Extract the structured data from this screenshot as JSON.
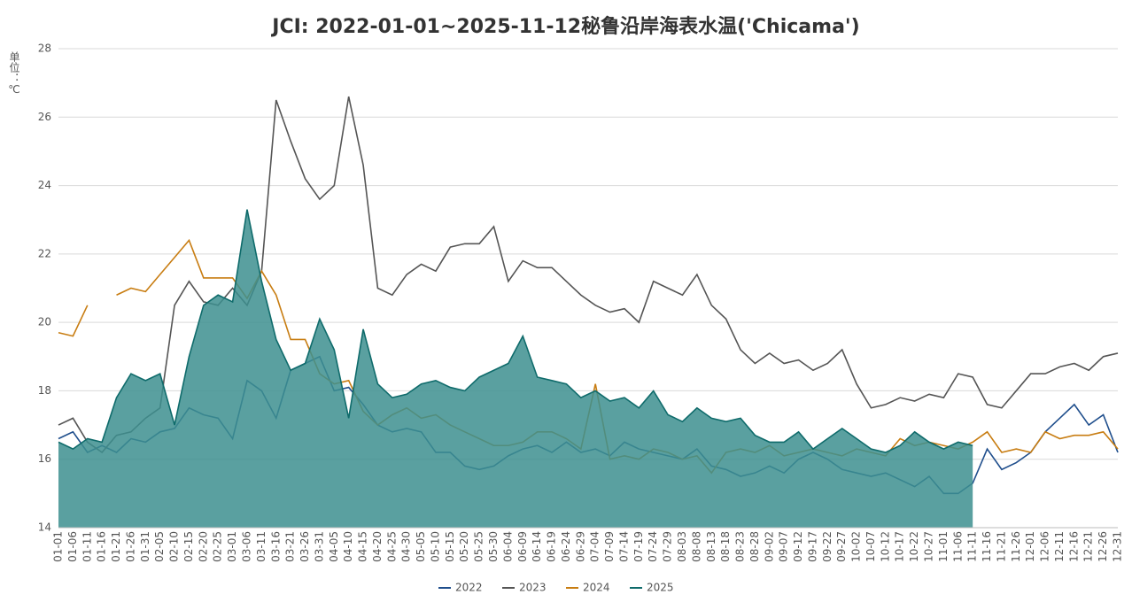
{
  "chart_data": {
    "type": "line",
    "title": "JCI: 2022-01-01~2025-11-12秘鲁沿岸海表水温('Chicama')",
    "y_label": "单位：℃",
    "categories": [
      "01-01",
      "01-06",
      "01-11",
      "01-16",
      "01-21",
      "01-26",
      "01-31",
      "02-05",
      "02-10",
      "02-15",
      "02-20",
      "02-25",
      "03-01",
      "03-06",
      "03-11",
      "03-16",
      "03-21",
      "03-26",
      "03-31",
      "04-05",
      "04-10",
      "04-15",
      "04-20",
      "04-25",
      "04-30",
      "05-05",
      "05-10",
      "05-15",
      "05-20",
      "05-25",
      "05-30",
      "06-04",
      "06-09",
      "06-14",
      "06-19",
      "06-24",
      "06-29",
      "07-04",
      "07-09",
      "07-14",
      "07-19",
      "07-24",
      "07-29",
      "08-03",
      "08-08",
      "08-13",
      "08-18",
      "08-23",
      "08-28",
      "09-02",
      "09-07",
      "09-12",
      "09-17",
      "09-22",
      "09-27",
      "10-02",
      "10-07",
      "10-12",
      "10-17",
      "10-22",
      "10-27",
      "11-01",
      "11-06",
      "11-11",
      "11-16",
      "11-21",
      "11-26",
      "12-01",
      "12-06",
      "12-11",
      "12-16",
      "12-21",
      "12-26",
      "12-31"
    ],
    "series": [
      {
        "name": "2022",
        "color": "#1f4e8c",
        "values": [
          16.6,
          16.8,
          16.2,
          16.4,
          16.2,
          16.6,
          16.5,
          16.8,
          16.9,
          17.5,
          17.3,
          17.2,
          16.6,
          18.3,
          18.0,
          17.2,
          18.6,
          18.8,
          19.0,
          18.0,
          18.1,
          17.6,
          17.0,
          16.8,
          16.9,
          16.8,
          16.2,
          16.2,
          15.8,
          15.7,
          15.8,
          16.1,
          16.3,
          16.4,
          16.2,
          16.5,
          16.2,
          16.3,
          16.1,
          16.5,
          16.3,
          16.2,
          16.1,
          16.0,
          16.3,
          15.8,
          15.7,
          15.5,
          15.6,
          15.8,
          15.6,
          16.0,
          16.2,
          16.0,
          15.7,
          15.6,
          15.5,
          15.6,
          15.4,
          15.2,
          15.5,
          15.0,
          15.0,
          15.3,
          16.3,
          15.7,
          15.9,
          16.2,
          16.8,
          17.2,
          17.6,
          17.0,
          17.3,
          16.2
        ]
      },
      {
        "name": "2023",
        "color": "#555555",
        "values": [
          17.0,
          17.2,
          16.5,
          16.2,
          16.7,
          16.8,
          17.2,
          17.5,
          20.5,
          21.2,
          20.6,
          20.5,
          21.0,
          20.5,
          21.5,
          26.5,
          25.3,
          24.2,
          23.6,
          24.0,
          26.6,
          24.6,
          21.0,
          20.8,
          21.4,
          21.7,
          21.5,
          22.2,
          22.3,
          22.3,
          22.8,
          21.2,
          21.8,
          21.6,
          21.6,
          21.2,
          20.8,
          20.5,
          20.3,
          20.4,
          20.0,
          21.2,
          21.0,
          20.8,
          21.4,
          20.5,
          20.1,
          19.2,
          18.8,
          19.1,
          18.8,
          18.9,
          18.6,
          18.8,
          19.2,
          18.2,
          17.5,
          17.6,
          17.8,
          17.7,
          17.9,
          17.8,
          18.5,
          18.4,
          17.6,
          17.5,
          18.0,
          18.5,
          18.5,
          18.7,
          18.8,
          18.6,
          19.0,
          19.1
        ]
      },
      {
        "name": "2024",
        "color": "#c87d12",
        "values": [
          19.7,
          19.6,
          20.5,
          null,
          20.8,
          21.0,
          20.9,
          21.4,
          21.9,
          22.4,
          21.3,
          21.3,
          21.3,
          20.7,
          21.5,
          20.8,
          19.5,
          19.5,
          18.5,
          18.2,
          18.3,
          17.4,
          17.0,
          17.3,
          17.5,
          17.2,
          17.3,
          17.0,
          16.8,
          16.6,
          16.4,
          16.4,
          16.5,
          16.8,
          16.8,
          16.6,
          16.3,
          18.2,
          16.0,
          16.1,
          16.0,
          16.3,
          16.2,
          16.0,
          16.1,
          15.6,
          16.2,
          16.3,
          16.2,
          16.4,
          16.1,
          16.2,
          16.3,
          16.2,
          16.1,
          16.3,
          16.2,
          16.1,
          16.6,
          16.4,
          16.5,
          16.4,
          16.3,
          16.5,
          16.8,
          16.2,
          16.3,
          16.2,
          16.8,
          16.6,
          16.7,
          16.7,
          16.8,
          16.3
        ]
      },
      {
        "name": "2025",
        "color": "#0f6b6b",
        "fill": "#3d8f8f",
        "values": [
          16.5,
          16.3,
          16.6,
          16.5,
          17.8,
          18.5,
          18.3,
          18.5,
          17.0,
          19.0,
          20.5,
          20.8,
          20.6,
          23.3,
          21.2,
          19.5,
          18.6,
          18.8,
          20.1,
          19.2,
          17.2,
          19.8,
          18.2,
          17.8,
          17.9,
          18.2,
          18.3,
          18.1,
          18.0,
          18.4,
          18.6,
          18.8,
          19.6,
          18.4,
          18.3,
          18.2,
          17.8,
          18.0,
          17.7,
          17.8,
          17.5,
          18.0,
          17.3,
          17.1,
          17.5,
          17.2,
          17.1,
          17.2,
          16.7,
          16.5,
          16.5,
          16.8,
          16.3,
          16.6,
          16.9,
          16.6,
          16.3,
          16.2,
          16.4,
          16.8,
          16.5,
          16.3,
          16.5,
          16.4,
          null,
          null,
          null,
          null,
          null,
          null,
          null,
          null,
          null,
          null
        ]
      }
    ],
    "ylim": [
      14,
      28
    ],
    "yticks": [
      14,
      16,
      18,
      20,
      22,
      24,
      26,
      28
    ],
    "grid": true,
    "legend": "bottom"
  }
}
